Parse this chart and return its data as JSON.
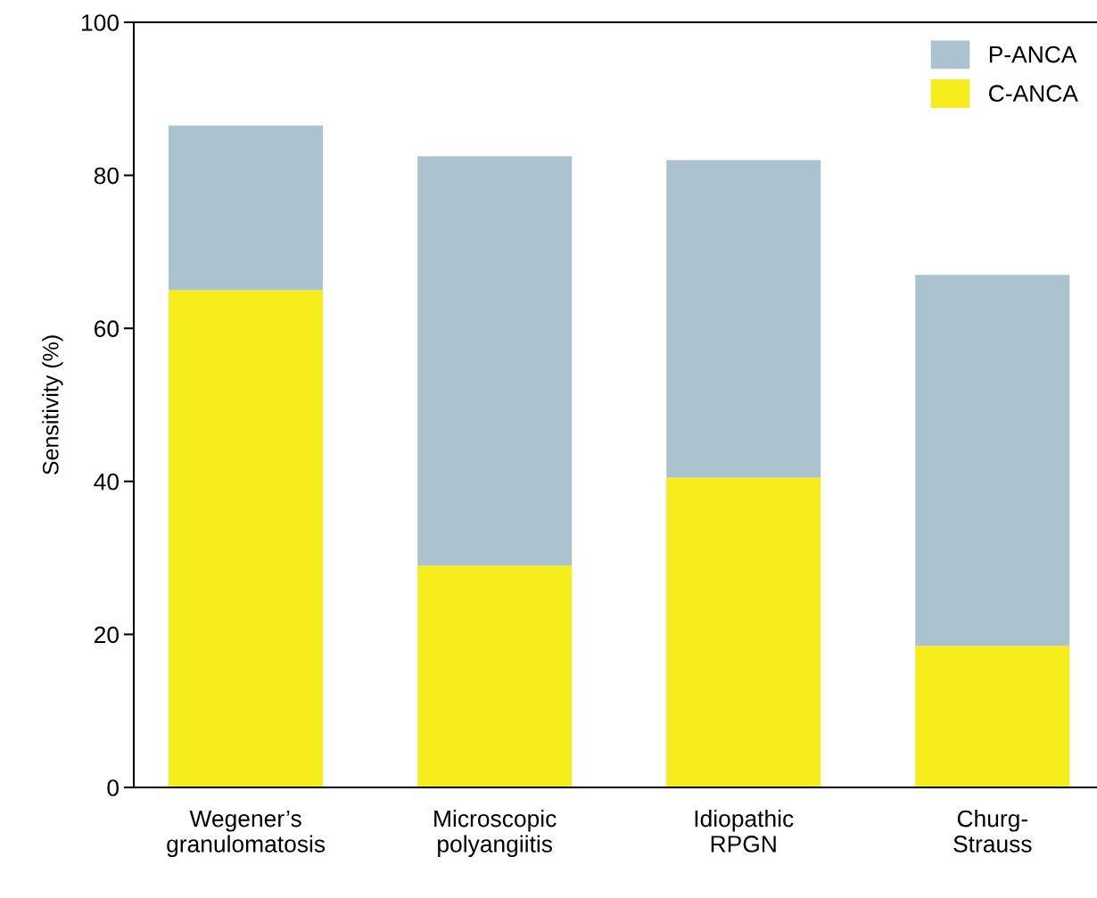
{
  "chart_data": {
    "type": "bar",
    "stacked": true,
    "ylabel": "Sensitivity (%)",
    "categories": [
      "Wegener’s\ngranulomatosis",
      "Microscopic\npolyangiitis",
      "Idiopathic\nRPGN",
      "Churg-\nStrauss"
    ],
    "series": [
      {
        "name": "C-ANCA",
        "color": "#f7ec1c",
        "values": [
          65,
          29,
          40.5,
          18.5
        ]
      },
      {
        "name": "P-ANCA",
        "color": "#abc3cf",
        "values": [
          21.5,
          53.5,
          41.5,
          48.5
        ]
      }
    ],
    "ylim": [
      0,
      100
    ],
    "yticks": [
      0,
      20,
      40,
      60,
      80,
      100
    ],
    "grid": false,
    "legend": "top right"
  }
}
